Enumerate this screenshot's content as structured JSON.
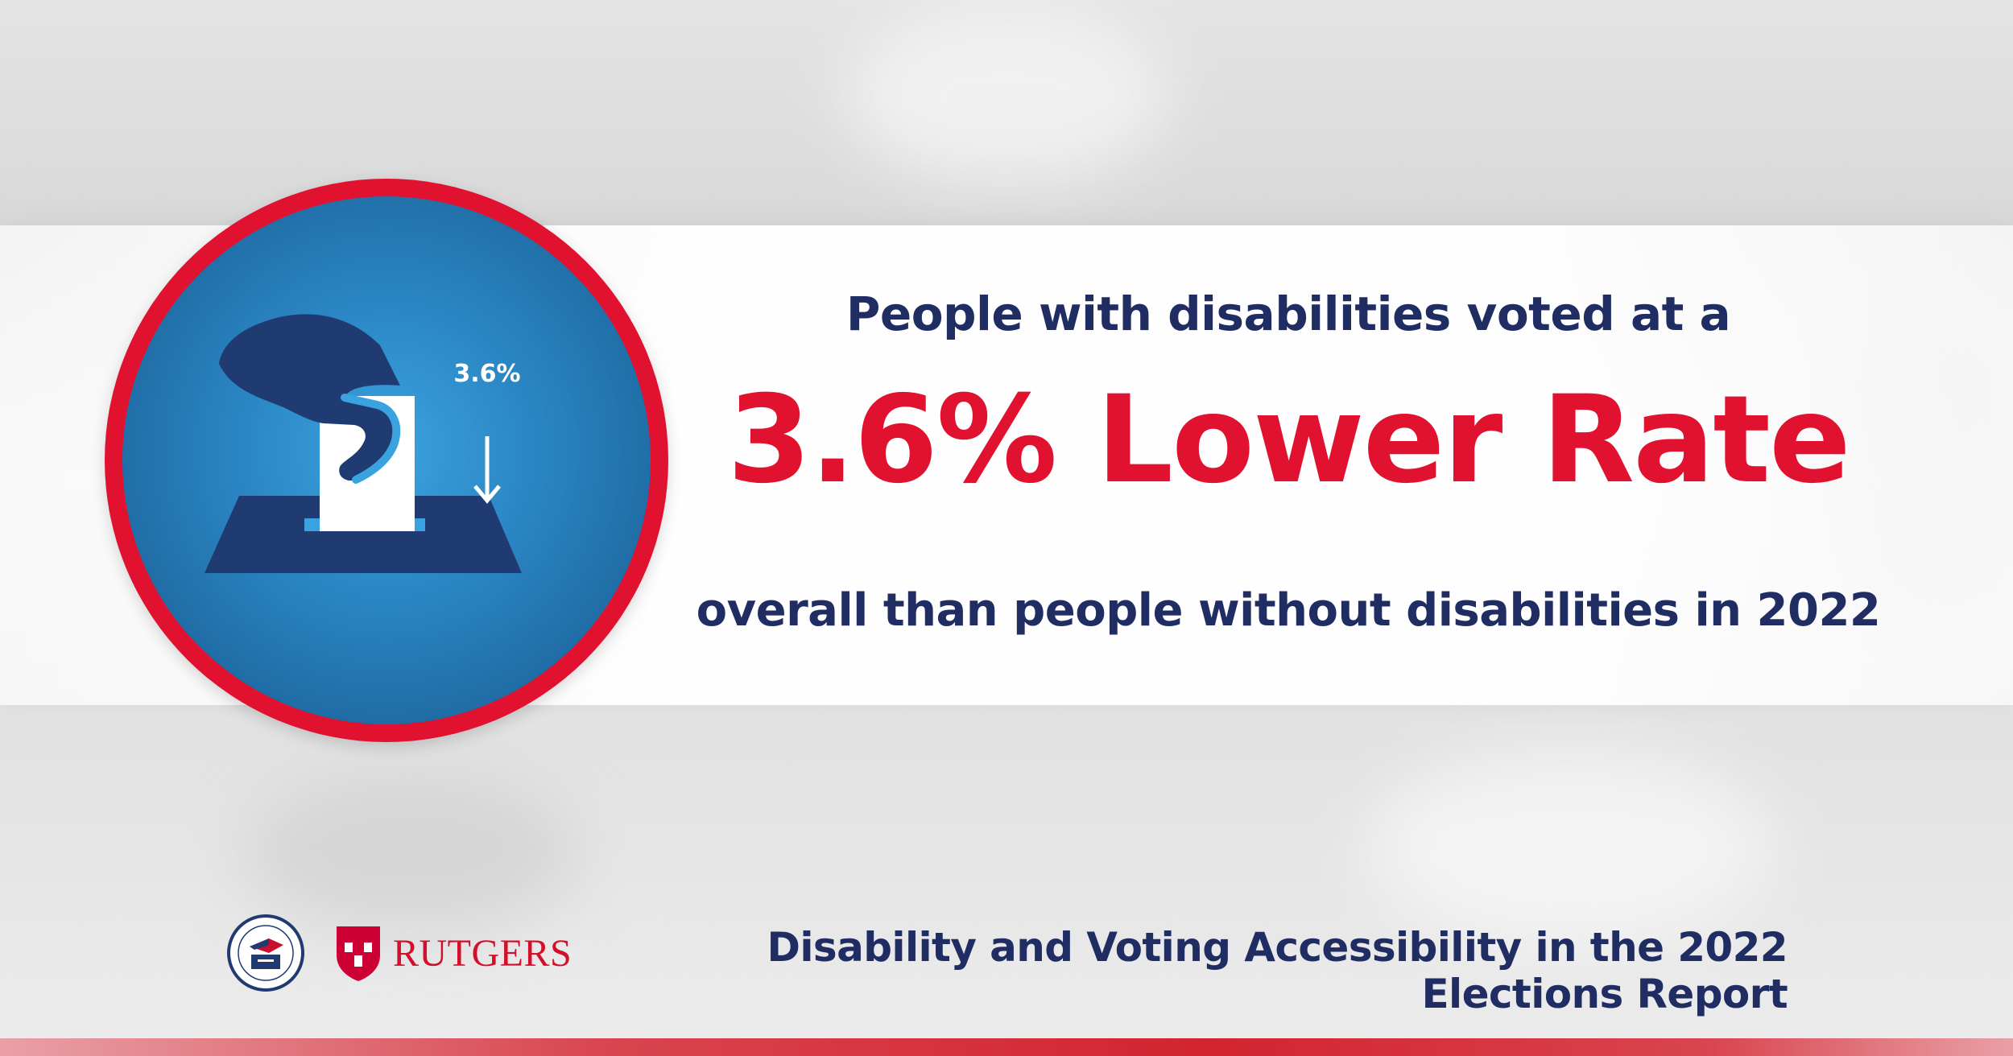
{
  "colors": {
    "accent_red": "#e0122f",
    "navy": "#1f2d63",
    "badge_blue": "#2a85c2"
  },
  "badge": {
    "icon": "ballot-box-vote-icon",
    "arrow_icon": "arrow-down-icon",
    "arrow_label": "3.6%"
  },
  "headline": {
    "top": "People with disabilities voted at a",
    "big": "3.6% Lower Rate",
    "bottom": "overall than people without disabilities in 2022"
  },
  "footer": {
    "seal_icon": "eac-seal-logo",
    "rutgers_shield_icon": "rutgers-shield-logo",
    "rutgers_wordmark": "RUTGERS",
    "report_title": "Disability and Voting Accessibility in the 2022 Elections Report"
  }
}
